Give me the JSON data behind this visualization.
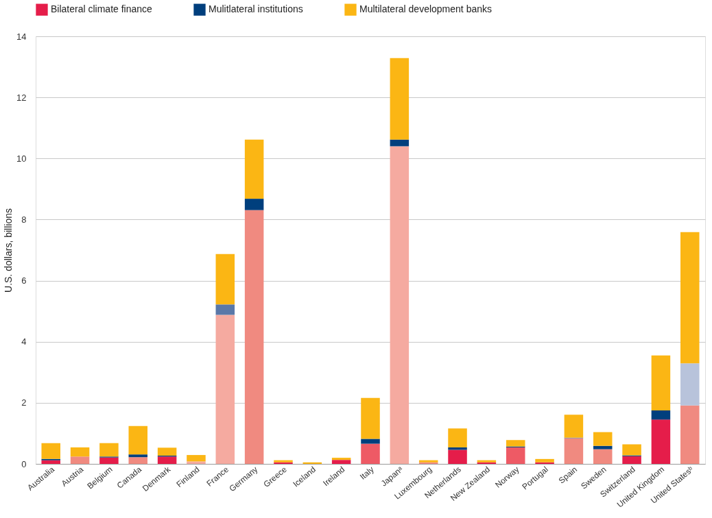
{
  "chart_data": {
    "type": "bar",
    "stacked": true,
    "ylabel": "U.S. dollars, billions",
    "ylim": [
      0,
      14
    ],
    "yticks": [
      0,
      2,
      4,
      6,
      8,
      10,
      12,
      14
    ],
    "grid": "y",
    "legend": "top",
    "categories": [
      "Australia",
      "Austria",
      "Belgium",
      "Canada",
      "Denmark",
      "Finland",
      "France",
      "Germany",
      "Greece",
      "Iceland",
      "Ireland",
      "Italy",
      "Japanᵃ",
      "Luxembourg",
      "Netherlands",
      "New Zealand",
      "Norway",
      "Portugal",
      "Spain",
      "Sweden",
      "Switzerland",
      "United Kingdom",
      "United Statesᵇ"
    ],
    "series": [
      {
        "name": "Bilateral climate finance",
        "color": "#e51d4a",
        "values": [
          0.12,
          0.24,
          0.21,
          0.22,
          0.24,
          0.08,
          4.88,
          8.31,
          0.05,
          null,
          0.13,
          0.66,
          10.4,
          0.05,
          0.46,
          0.05,
          0.54,
          0.05,
          0.84,
          0.48,
          0.25,
          1.45,
          1.91
        ],
        "colors": [
          "#e51d4a",
          "#f08a80",
          "#e51d4a",
          "#f08a80",
          "#e51d4a",
          "#f5aaa0",
          "#f5aaa0",
          "#f08a80",
          "#e51d4a",
          "#e51d4a",
          "#e51d4a",
          "#ee5a65",
          "#f5aaa0",
          "#f08a80",
          "#e51d4a",
          "#e51d4a",
          "#ee5a65",
          "#e51d4a",
          "#f08a80",
          "#f08a80",
          "#e51d4a",
          "#e51d4a",
          "#f08a80"
        ]
      },
      {
        "name": "Mulitlateral institutions",
        "color": "#003f7d",
        "values": [
          0.04,
          null,
          0.03,
          0.09,
          0.03,
          null,
          0.34,
          0.37,
          0.0,
          0.0,
          0.0,
          0.16,
          0.22,
          0.0,
          0.08,
          0.0,
          0.03,
          0.0,
          0.02,
          0.11,
          0.03,
          0.3,
          1.38
        ],
        "colors": [
          "#003f7d",
          "#b8c3db",
          "#003f7d",
          "#003f7d",
          "#003f7d",
          "#b8c3db",
          "#5a78a8",
          "#003f7d",
          "#003f7d",
          "#003f7d",
          "#003f7d",
          "#003f7d",
          "#003f7d",
          "#003f7d",
          "#003f7d",
          "#003f7d",
          "#003f7d",
          "#003f7d",
          "#5a78a8",
          "#003f7d",
          "#003f7d",
          "#003f7d",
          "#b8c3db"
        ]
      },
      {
        "name": "Multilateral development banks",
        "color": "#fbb614",
        "values": [
          0.52,
          0.3,
          0.44,
          0.93,
          0.26,
          0.21,
          1.65,
          1.94,
          0.07,
          0.05,
          0.07,
          1.34,
          2.67,
          0.07,
          0.62,
          0.07,
          0.21,
          0.11,
          0.75,
          0.45,
          0.36,
          1.8,
          4.3
        ]
      }
    ]
  }
}
